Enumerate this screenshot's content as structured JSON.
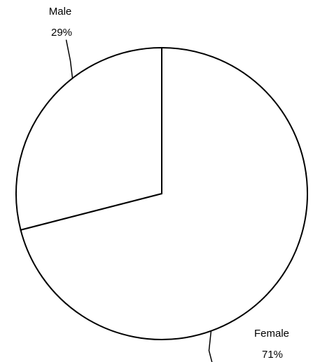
{
  "chart_data": {
    "type": "pie",
    "slices": [
      {
        "label": "Female",
        "value": 71,
        "value_label": "71%"
      },
      {
        "label": "Male",
        "value": 29,
        "value_label": "29%"
      }
    ],
    "start_at": "top",
    "direction": "clockwise",
    "colors": {
      "fill": "#ffffff",
      "stroke": "#000000"
    },
    "title": "",
    "legend": "none"
  }
}
